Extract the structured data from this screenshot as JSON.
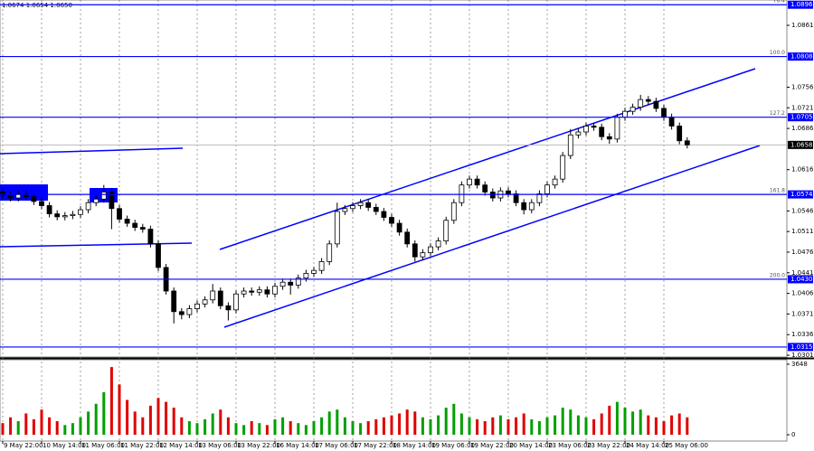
{
  "chart_data": {
    "type": "candlestick",
    "header": "1.0674 1.0654 1.0650",
    "categories": [
      "9 May 22:00",
      null,
      null,
      null,
      null,
      "10 May 14:00",
      null,
      null,
      null,
      null,
      "11 May 06:00",
      null,
      null,
      null,
      null,
      "11 May 22:00",
      null,
      null,
      null,
      null,
      "12 May 14:00",
      null,
      null,
      null,
      null,
      "13 May 06:00",
      null,
      null,
      null,
      null,
      "13 May 22:00",
      null,
      null,
      null,
      null,
      "16 May 14:00",
      null,
      null,
      null,
      null,
      "17 May 06:00",
      null,
      null,
      null,
      null,
      "17 May 22:00",
      null,
      null,
      null,
      null,
      "18 May 14:00",
      null,
      null,
      null,
      null,
      "19 May 06:00",
      null,
      null,
      null,
      null,
      "19 May 22:00",
      null,
      null,
      null,
      null,
      "20 May 14:00",
      null,
      null,
      null,
      null,
      "23 May 06:00",
      null,
      null,
      null,
      null,
      "23 May 22:00",
      null,
      null,
      null,
      null,
      "24 May 14:00",
      null,
      null,
      null,
      null,
      "25 May 06:00",
      null,
      null,
      null
    ],
    "open": [
      1.0578,
      1.0572,
      1.0568,
      1.0575,
      1.057,
      1.0562,
      1.0555,
      1.0541,
      1.0536,
      1.0538,
      1.054,
      1.0548,
      1.056,
      1.0566,
      1.0578,
      1.055,
      1.0532,
      1.0525,
      1.0518,
      1.0515,
      1.049,
      1.045,
      1.041,
      1.0375,
      1.037,
      1.038,
      1.0388,
      1.0395,
      1.041,
      1.0385,
      1.0378,
      1.0405,
      1.041,
      1.0408,
      1.0412,
      1.0405,
      1.0418,
      1.0425,
      1.042,
      1.0432,
      1.044,
      1.0445,
      1.046,
      1.049,
      1.0545,
      1.055,
      1.0555,
      1.056,
      1.0552,
      1.0545,
      1.0535,
      1.0525,
      1.051,
      1.049,
      1.0468,
      1.0475,
      1.0485,
      1.0495,
      1.053,
      1.056,
      1.059,
      1.06,
      1.059,
      1.0578,
      1.0568,
      1.058,
      1.0575,
      1.056,
      1.0548,
      1.056,
      1.0575,
      1.059,
      1.06,
      1.064,
      1.0675,
      1.068,
      1.069,
      1.0688,
      1.0672,
      1.0668,
      1.0705,
      1.0715,
      1.0722,
      1.0735,
      1.0732,
      1.072,
      1.0705,
      1.069,
      1.0665
    ],
    "high": [
      1.0584,
      1.0578,
      1.0581,
      1.0581,
      1.0576,
      1.0568,
      1.0561,
      1.0547,
      1.0544,
      1.0546,
      1.0554,
      1.0566,
      1.0572,
      1.059,
      1.0584,
      1.0556,
      1.0538,
      1.0531,
      1.0524,
      1.0521,
      1.0496,
      1.0456,
      1.0416,
      1.0381,
      1.0386,
      1.0394,
      1.0401,
      1.0422,
      1.0416,
      1.0391,
      1.0411,
      1.0416,
      1.0416,
      1.0418,
      1.0418,
      1.0424,
      1.0431,
      1.0431,
      1.0438,
      1.0446,
      1.0451,
      1.0466,
      1.0496,
      1.056,
      1.0556,
      1.0561,
      1.0566,
      1.0566,
      1.0558,
      1.0551,
      1.0541,
      1.0531,
      1.0516,
      1.0496,
      1.0481,
      1.0491,
      1.0501,
      1.0536,
      1.0566,
      1.0596,
      1.0606,
      1.0606,
      1.0596,
      1.0584,
      1.0586,
      1.0586,
      1.0581,
      1.0566,
      1.0566,
      1.0581,
      1.0596,
      1.0606,
      1.0646,
      1.0685,
      1.0686,
      1.0696,
      1.0696,
      1.0694,
      1.0678,
      1.0711,
      1.0721,
      1.0728,
      1.0743,
      1.0741,
      1.0738,
      1.0726,
      1.0711,
      1.0696,
      1.0671
    ],
    "low": [
      1.0566,
      1.0562,
      1.0562,
      1.0564,
      1.0556,
      1.0549,
      1.0535,
      1.053,
      1.053,
      1.0532,
      1.0534,
      1.0542,
      1.0554,
      1.056,
      1.0515,
      1.0526,
      1.0519,
      1.0512,
      1.0509,
      1.0484,
      1.0444,
      1.0404,
      1.0355,
      1.0362,
      1.0364,
      1.0374,
      1.0382,
      1.0389,
      1.0379,
      1.036,
      1.0372,
      1.0399,
      1.0402,
      1.0402,
      1.0399,
      1.0399,
      1.0412,
      1.0404,
      1.0414,
      1.0426,
      1.0434,
      1.0439,
      1.0454,
      1.0484,
      1.0539,
      1.0544,
      1.0549,
      1.0546,
      1.0539,
      1.0529,
      1.0519,
      1.0504,
      1.0484,
      1.046,
      1.0462,
      1.0469,
      1.0479,
      1.0489,
      1.0524,
      1.0554,
      1.0584,
      1.0584,
      1.0572,
      1.0562,
      1.0562,
      1.0569,
      1.0554,
      1.054,
      1.0542,
      1.0554,
      1.0569,
      1.0584,
      1.0594,
      1.0634,
      1.0669,
      1.0674,
      1.0682,
      1.0666,
      1.066,
      1.0662,
      1.0699,
      1.0709,
      1.0716,
      1.0726,
      1.0714,
      1.0699,
      1.0684,
      1.0659,
      1.0652
    ],
    "close": [
      1.0572,
      1.0568,
      1.0575,
      1.057,
      1.0562,
      1.0555,
      1.0541,
      1.0536,
      1.0538,
      1.054,
      1.0548,
      1.056,
      1.0566,
      1.0578,
      1.055,
      1.0532,
      1.0525,
      1.0518,
      1.0515,
      1.049,
      1.045,
      1.041,
      1.0375,
      1.037,
      1.038,
      1.0388,
      1.0395,
      1.041,
      1.0385,
      1.0378,
      1.0405,
      1.041,
      1.0408,
      1.0412,
      1.0405,
      1.0418,
      1.0425,
      1.042,
      1.0432,
      1.044,
      1.0445,
      1.046,
      1.049,
      1.0545,
      1.055,
      1.0555,
      1.056,
      1.0552,
      1.0545,
      1.0535,
      1.0525,
      1.051,
      1.049,
      1.0468,
      1.0475,
      1.0485,
      1.0495,
      1.053,
      1.056,
      1.059,
      1.06,
      1.059,
      1.0578,
      1.0568,
      1.058,
      1.0575,
      1.056,
      1.0548,
      1.056,
      1.0575,
      1.059,
      1.06,
      1.064,
      1.0675,
      1.068,
      1.069,
      1.0688,
      1.0672,
      1.0668,
      1.0705,
      1.0715,
      1.0722,
      1.0735,
      1.0732,
      1.072,
      1.0705,
      1.069,
      1.0665,
      1.0658
    ],
    "volume": [
      600,
      900,
      700,
      1100,
      800,
      1300,
      900,
      700,
      500,
      600,
      900,
      1200,
      1600,
      2200,
      3500,
      2600,
      1800,
      1200,
      900,
      1500,
      1900,
      1700,
      1400,
      900,
      700,
      600,
      800,
      1100,
      1300,
      900,
      600,
      500,
      700,
      600,
      500,
      800,
      900,
      700,
      600,
      500,
      700,
      900,
      1200,
      1300,
      900,
      700,
      600,
      700,
      800,
      900,
      1000,
      1100,
      1300,
      1200,
      900,
      800,
      1000,
      1400,
      1600,
      1100,
      900,
      800,
      700,
      900,
      1000,
      800,
      900,
      1100,
      800,
      700,
      900,
      1000,
      1400,
      1300,
      1000,
      900,
      800,
      1100,
      1500,
      1700,
      1400,
      1200,
      1300,
      1000,
      900,
      700,
      1000,
      1100,
      900
    ],
    "ylim": [
      1.0298,
      1.0904
    ],
    "yticks": [
      1.0861,
      1.0756,
      1.0721,
      1.0686,
      1.0616,
      1.0546,
      1.0511,
      1.0476,
      1.0441,
      1.0406,
      1.0371,
      1.0336,
      1.0301
    ],
    "levels": [
      {
        "value": 1.0896,
        "label": "1.0896",
        "fib": "76.4"
      },
      {
        "value": 1.0808,
        "label": "1.0808",
        "fib": "100.0"
      },
      {
        "value": 1.0705,
        "label": "1.0705",
        "fib": "127.2"
      },
      {
        "value": 1.0574,
        "label": "1.0574",
        "fib": "161.8"
      },
      {
        "value": 1.043,
        "label": "1.0430",
        "fib": "200.0"
      },
      {
        "value": 1.0315,
        "label": "1.0315"
      }
    ],
    "current": {
      "value": 1.0658,
      "label": "1.0658"
    },
    "volume_ylim": [
      0,
      3880
    ],
    "volume_yticks": [
      0,
      3648
    ],
    "candle_color": "#000000",
    "level_color": "#0000ff",
    "volume_up_color": "#00a000",
    "volume_down_color": "#e00000"
  }
}
